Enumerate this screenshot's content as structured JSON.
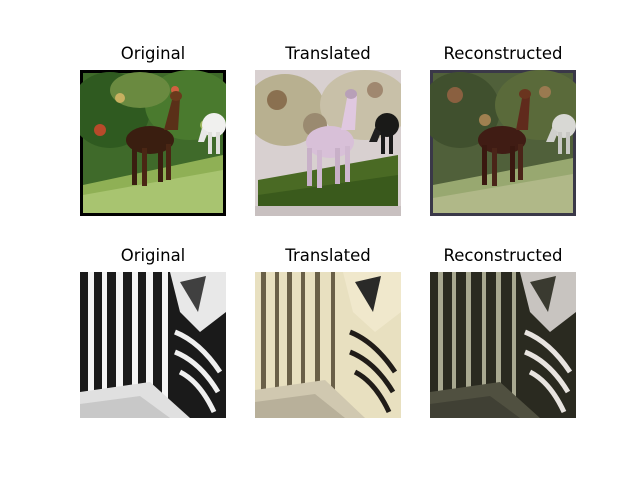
{
  "figure": {
    "rows": [
      {
        "panels": [
          {
            "title": "Original"
          },
          {
            "title": "Translated"
          },
          {
            "title": "Reconstructed"
          }
        ]
      },
      {
        "panels": [
          {
            "title": "Original"
          },
          {
            "title": "Translated"
          },
          {
            "title": "Reconstructed"
          }
        ]
      }
    ]
  }
}
